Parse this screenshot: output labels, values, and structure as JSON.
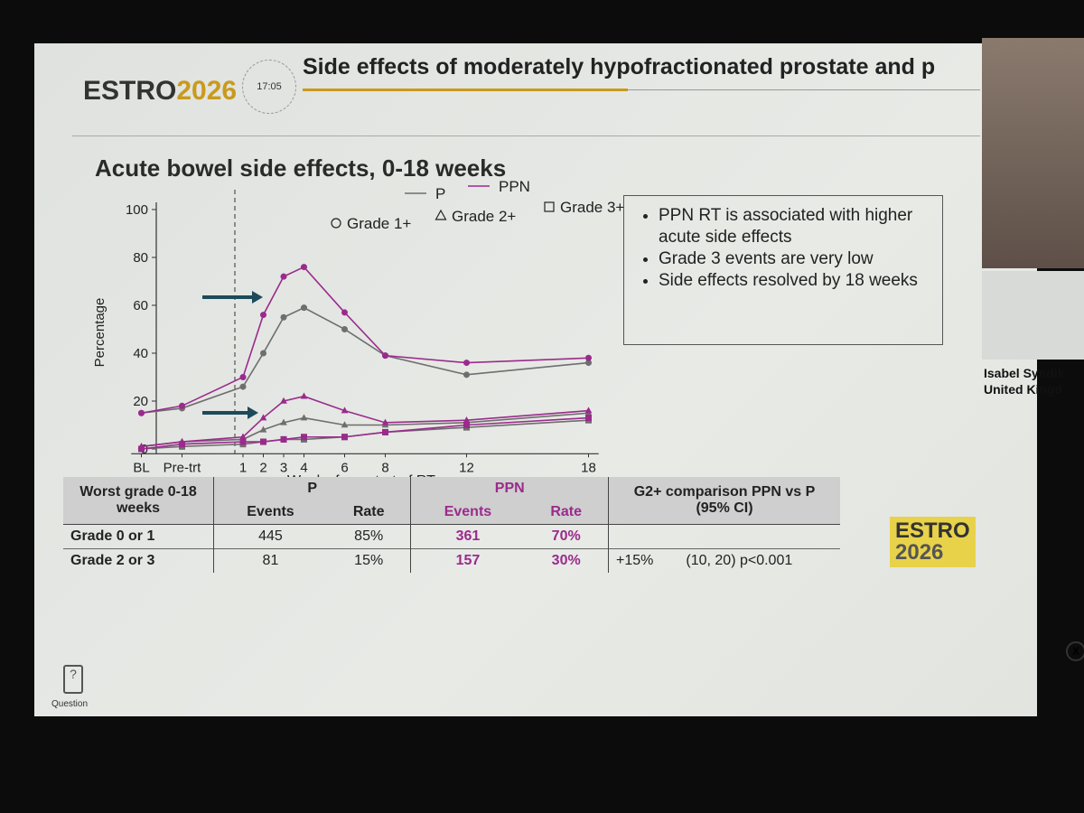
{
  "header": {
    "logo": "ESTRO",
    "logo_year": "2026",
    "time": "17:05",
    "title": "Side effects of moderately hypofractionated prostate and p"
  },
  "chart_data": {
    "type": "line",
    "title": "Acute bowel side effects, 0-18 weeks",
    "x_label": "Weeks from start of RT",
    "y_label": "Percentage",
    "x": [
      -4,
      -2,
      1,
      2,
      3,
      4,
      6,
      8,
      12,
      18
    ],
    "xlim": [
      -4.5,
      18.5
    ],
    "xticks": [
      {
        "value": -4,
        "label": "BL"
      },
      {
        "value": -2,
        "label": "Pre-trt"
      },
      1,
      2,
      3,
      4,
      6,
      8,
      12,
      18
    ],
    "ylim": [
      -2,
      103
    ],
    "yticks": [
      0,
      20,
      40,
      60,
      80,
      100
    ],
    "reference_line_x": 0.6,
    "legend": {
      "lines": [
        {
          "name": "P",
          "color": "#6e6e6e"
        },
        {
          "name": "PPN",
          "color": "#9a2b8c"
        }
      ],
      "markers": [
        {
          "name": "Grade 1+",
          "shape": "circle"
        },
        {
          "name": "Grade 2+",
          "shape": "triangle"
        },
        {
          "name": "Grade 3+",
          "shape": "square"
        }
      ]
    },
    "series": [
      {
        "arm": 0,
        "grade": 0,
        "values": [
          15,
          17,
          26,
          40,
          55,
          59,
          50,
          39,
          31,
          36
        ]
      },
      {
        "arm": 1,
        "grade": 0,
        "values": [
          15,
          18,
          30,
          56,
          72,
          76,
          57,
          39,
          36,
          38
        ]
      },
      {
        "arm": 0,
        "grade": 1,
        "values": [
          1,
          3,
          4,
          8,
          11,
          13,
          10,
          10,
          11,
          15
        ]
      },
      {
        "arm": 1,
        "grade": 1,
        "values": [
          1,
          3,
          5,
          13,
          20,
          22,
          16,
          11,
          12,
          16
        ]
      },
      {
        "arm": 0,
        "grade": 2,
        "values": [
          0,
          1,
          2,
          3,
          4,
          4,
          5,
          7,
          9,
          12
        ]
      },
      {
        "arm": 1,
        "grade": 2,
        "values": [
          0,
          2,
          3,
          3,
          4,
          5,
          5,
          7,
          10,
          13
        ]
      }
    ]
  },
  "bullets": [
    "PPN RT is associated with higher acute side effects",
    "Grade 3 events are very low",
    "Side effects resolved by 18 weeks"
  ],
  "table": {
    "row_header": "Worst grade 0-18 weeks",
    "group_p": "P",
    "group_ppn": "PPN",
    "comparison_header": "G2+ comparison PPN vs P (95% CI)",
    "sub_events": "Events",
    "sub_rate": "Rate",
    "rows": [
      [
        "Grade 0 or 1",
        "445",
        "85%",
        "361",
        "70%"
      ],
      [
        "Grade 2 or 3",
        "81",
        "15%",
        "157",
        "30%"
      ]
    ],
    "comparison": {
      "diff": "+15%",
      "ci": "(10, 20) p<0.001"
    }
  },
  "footer_logo": "ESTRO",
  "footer_logo_year": "2026",
  "question": "Question",
  "speaker": {
    "name": "Isabel Syndik",
    "country": "United Kingd"
  }
}
